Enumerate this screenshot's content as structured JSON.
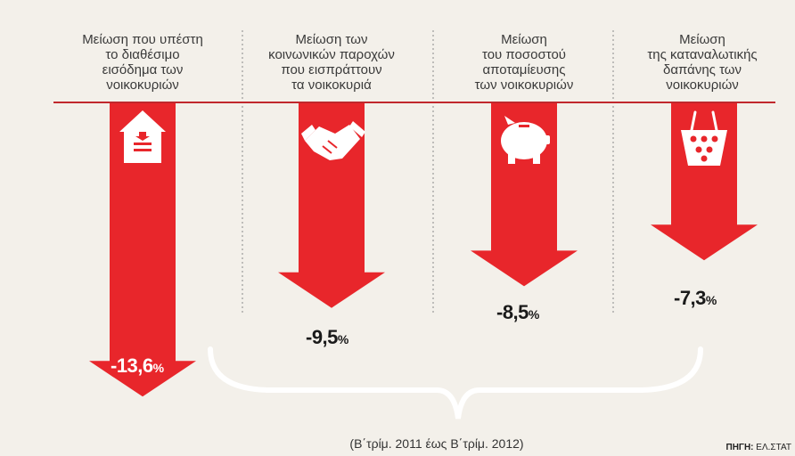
{
  "chart_data": {
    "type": "bar",
    "orientation": "downward-arrows",
    "title": "",
    "xlabel": "",
    "ylabel": "",
    "categories": [
      "Μείωση που υπέστη το διαθέσιμο εισόδημα των νοικοκυριών",
      "Μείωση των κοινωνικών παροχών που εισπράττουν τα νοικοκυριά",
      "Μείωση του ποσοστού αποταμίευσης των νοικοκυριών",
      "Μείωση της καταναλωτικής δαπάνης των νοικοκυριών"
    ],
    "category_lines": [
      [
        "Μείωση που υπέστη",
        "το διαθέσιμο",
        "εισόδημα των",
        "νοικοκυριών"
      ],
      [
        "Μείωση των",
        "κοινωνικών παροχών",
        "που εισπράττουν",
        "τα νοικοκυριά"
      ],
      [
        "Μείωση",
        "του ποσοστού",
        "αποταμίευσης",
        "των νοικοκυριών"
      ],
      [
        "Μείωση",
        "της καταναλωτικής",
        "δαπάνης των",
        "νοικοκυριών"
      ]
    ],
    "values": [
      -13.6,
      -9.5,
      -8.5,
      -7.3
    ],
    "value_labels": [
      "-13,6",
      "-9,5",
      "-8,5",
      "-7,3"
    ],
    "unit": "%",
    "icons": [
      "house-icon",
      "handshake-icon",
      "piggy-bank-icon",
      "shopping-basket-icon"
    ],
    "ylim": [
      -14,
      0
    ],
    "grid": false,
    "period": "(Β΄τρίμ. 2011 έως Β΄τρίμ. 2012)",
    "source_label": "ΠΗΓΗ:",
    "source": "ΕΛ.ΣΤΑΤ"
  },
  "colors": {
    "arrow": "#e8262b",
    "baseline": "#c0282d",
    "divider": "#8a8a8a",
    "brace": "#ffffff",
    "icon": "#ffffff",
    "text": "#3a3a3a"
  }
}
